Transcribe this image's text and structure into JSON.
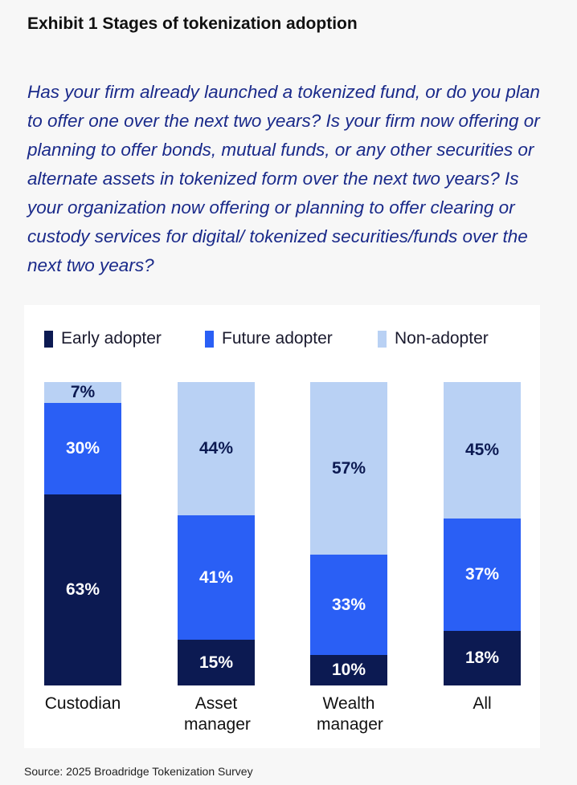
{
  "title": "Exhibit 1  Stages of tokenization adoption",
  "question": "Has your firm already launched a tokenized fund, or do you plan to offer one over the next two years? Is your firm now offering or planning to offer bonds, mutual funds, or any other securities or alternate assets in tokenized form over the next two years? Is your organization now offering or planning to offer clearing or custody services for digital/ tokenized securities/funds over the next two years?",
  "source": "Source: 2025 Broadridge Tokenization Survey",
  "chart_data": {
    "type": "bar",
    "stacked": true,
    "categories": [
      "Custodian",
      "Asset manager",
      "Wealth manager",
      "All"
    ],
    "series": [
      {
        "name": "Early adopter",
        "color": "#0c1a52",
        "label_color": "#ffffff",
        "values": [
          63,
          15,
          10,
          18
        ]
      },
      {
        "name": "Future adopter",
        "color": "#2a5ff5",
        "label_color": "#ffffff",
        "values": [
          30,
          41,
          33,
          37
        ]
      },
      {
        "name": "Non-adopter",
        "color": "#b9d1f4",
        "label_color": "#0c1a52",
        "values": [
          7,
          44,
          57,
          45
        ]
      }
    ],
    "labels": [
      [
        "63%",
        "15%",
        "10%",
        "18%"
      ],
      [
        "30%",
        "41%",
        "33%",
        "37%"
      ],
      [
        "7%",
        "44%",
        "57%",
        "45%"
      ]
    ],
    "ylim": [
      0,
      100
    ],
    "legend": "top-left",
    "grid": false
  }
}
